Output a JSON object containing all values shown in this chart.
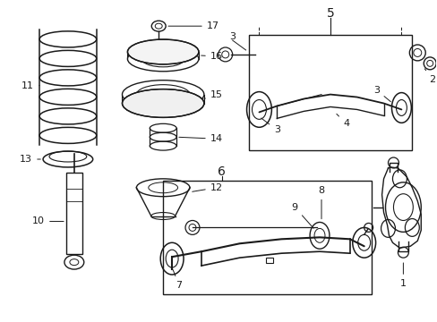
{
  "background_color": "#ffffff",
  "line_color": "#1a1a1a",
  "text_color": "#1a1a1a",
  "font_size": 8,
  "fig_width": 4.89,
  "fig_height": 3.6,
  "dpi": 100
}
